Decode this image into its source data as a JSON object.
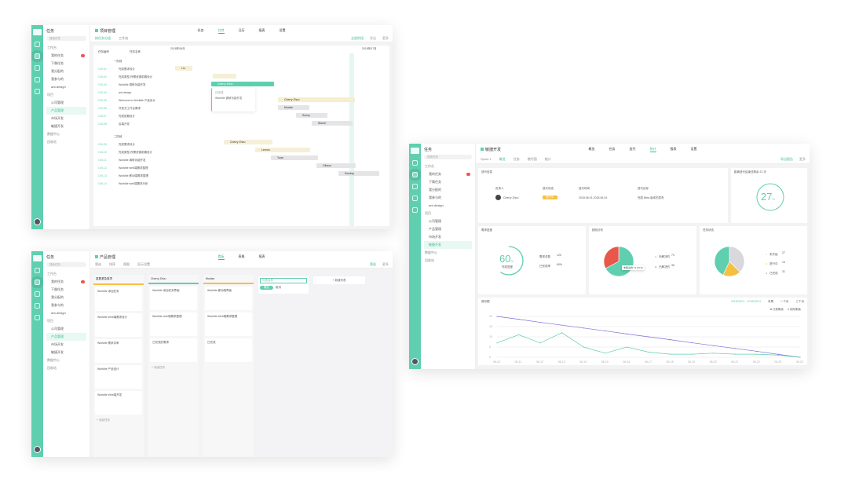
{
  "colors": {
    "accent": "#5fcfb0",
    "red": "#e8574a",
    "yellow": "#f5c042",
    "purple": "#7b6fd8",
    "grey": "#d9d9dd"
  },
  "sidebar": {
    "title": "任务",
    "search": "搜索任务",
    "items": [
      {
        "label": "工作台",
        "group": true
      },
      {
        "label": "我的任务",
        "badge": true
      },
      {
        "label": "下属任务"
      },
      {
        "label": "我分配的"
      },
      {
        "label": "我参与的"
      },
      {
        "label": "ant-design"
      },
      {
        "label": "项目",
        "group": true
      },
      {
        "label": "公司管理"
      },
      {
        "label": "产品管理"
      },
      {
        "label": "市场开发"
      },
      {
        "label": "敏捷开发"
      },
      {
        "label": "数据中心",
        "group": true
      },
      {
        "label": "回收站",
        "group": true
      }
    ]
  },
  "gantt": {
    "title": "项目管理",
    "tabs": [
      "任务",
      "甘特",
      "日历",
      "报表",
      "设置"
    ],
    "active_tab": 1,
    "sub": [
      "按任务分组",
      "工作流"
    ],
    "actions": [
      "全部阶段",
      "导出",
      "更多"
    ],
    "col_headers": [
      "任务编号",
      "任务名称"
    ],
    "month1": "2018年06月",
    "month2": "2018年07月",
    "groups": [
      "一阶段",
      "二阶段"
    ],
    "rows": [
      [
        "CW-01",
        "完成需求设计"
      ],
      [
        "CW-02",
        "完成原型-所需资源前期设计"
      ],
      [
        "CW-03",
        "Worktile 调研功能开发"
      ],
      [
        "CW-04",
        "ant-design"
      ],
      [
        "CW-05",
        "Welcome to Worktile 产品设计"
      ],
      [
        "CW-06",
        "开放式工作台需求"
      ],
      [
        "CW-07",
        "完成前期设计"
      ],
      [
        "CW-08",
        "后端开发"
      ]
    ],
    "rows2": [
      [
        "CW-09",
        "完成需求设计"
      ],
      [
        "CW-10",
        "完成原型-所需资源前期设计"
      ],
      [
        "CW-11",
        "Worktile 调研功能开发"
      ],
      [
        "CW-12",
        "Worktile web端需求整理"
      ],
      [
        "CW-13",
        "Worktile 移动端需求整理"
      ],
      [
        "CW-14",
        "Worktile web端需求分析"
      ]
    ],
    "bars": [
      "Liu",
      "Cherry Zhou",
      "Cherry Zhou",
      "Moxian",
      "Sunny",
      "Stoner",
      "Cherry Zhou",
      "Lemon",
      "Yuan",
      "Gibson",
      "Sunday"
    ],
    "popup": {
      "status": "已完成",
      "text": "Worktile 调研功能开发"
    }
  },
  "kanban": {
    "title": "产品管理",
    "tabs": [
      "看板",
      "表格",
      "报表"
    ],
    "sub": [
      "筛选",
      "排序",
      "视图",
      "显示设置"
    ],
    "actions": [
      "筛选",
      "更多"
    ],
    "columns": [
      {
        "name": "重要紧急事项",
        "cards": [
          "Worktile 添加任务",
          "Worktile Web端需求设计",
          "Worktile 需求评审",
          "Worktile 产品设计",
          "Worktile Web端开发"
        ]
      },
      {
        "name": "Cherry Zhou",
        "cards": [
          "Worktile 添加任务界面",
          "Worktile web端需求整理",
          "已完成的需求"
        ]
      },
      {
        "name": "Moxian",
        "cards": [
          "Worktile 移动端界面",
          "Worktile Web端需求整理",
          "已完成"
        ]
      }
    ],
    "new_placeholder": "列表名称",
    "confirm": "确定",
    "cancel": "取消",
    "add_list": "+ 新建列表",
    "add_task": "+ 添加任务"
  },
  "dashboard": {
    "title": "敏捷开发",
    "tabs": [
      "概览",
      "任务",
      "迭代",
      "统计",
      "报表",
      "设置"
    ],
    "active_tab": 3,
    "sub": [
      "Sprint 1",
      "概览",
      "任务",
      "燃尽图",
      "统计"
    ],
    "actions": [
      "导出报告",
      "更多"
    ],
    "info": {
      "title": "迭代信息",
      "labels": [
        "负责人",
        "迭代状态",
        "迭代时间",
        "迭代目标"
      ],
      "owner": "Cherry Zhou",
      "status": "进行中",
      "time": "2018.06.01-2018.06.24",
      "goal": "完成 Beta 版本的发布"
    },
    "days": {
      "title": "距离迭代结束还剩余 21 天",
      "value": "27",
      "unit": "%"
    },
    "progress": {
      "title": "需求进度",
      "value": "60",
      "unit": "%",
      "caption": "完成进度",
      "labels": [
        "需求总数",
        "已完成率"
      ],
      "values": [
        "120",
        "60%"
      ],
      "fraction": 0.6
    },
    "bugs": {
      "title": "缺陷分布",
      "labels": [
        "未解决的",
        "已解决的"
      ],
      "values": [
        74,
        36
      ],
      "tooltip": "未解决的 74 (67%)"
    },
    "tasks": {
      "title": "任务状态",
      "labels": [
        "未开始",
        "进行中",
        "已完成"
      ],
      "values": [
        27,
        14,
        31
      ]
    },
    "burndown": {
      "title": "燃尽图",
      "date_range": "2018/06/01 - 2018/06/24",
      "options": [
        "本周",
        "一个月",
        "三个月"
      ],
      "legend": [
        "计划剩余",
        "实际剩余"
      ],
      "chart_data": {
        "type": "line",
        "x": [
          "06-10",
          "06-11",
          "06-12",
          "06-13",
          "06-14",
          "06-15",
          "06-16",
          "06-17",
          "06-18",
          "06-19",
          "06-20",
          "06-21",
          "06-22",
          "06-23",
          "06-24"
        ],
        "yticks": [
          "20",
          "15",
          "10",
          "5",
          "0"
        ],
        "ylim": [
          0,
          20
        ],
        "series": [
          {
            "name": "计划剩余",
            "values": [
              20,
              18.6,
              17.1,
              15.7,
              14.3,
              12.9,
              11.4,
              10,
              8.6,
              7.1,
              5.7,
              4.3,
              2.9,
              1.4,
              0
            ]
          },
          {
            "name": "实际剩余",
            "values": [
              7,
              11,
              7,
              12,
              5,
              2,
              5,
              2.5,
              1.5,
              1.5,
              2,
              1.5,
              1.5,
              1,
              0
            ]
          }
        ]
      }
    }
  }
}
